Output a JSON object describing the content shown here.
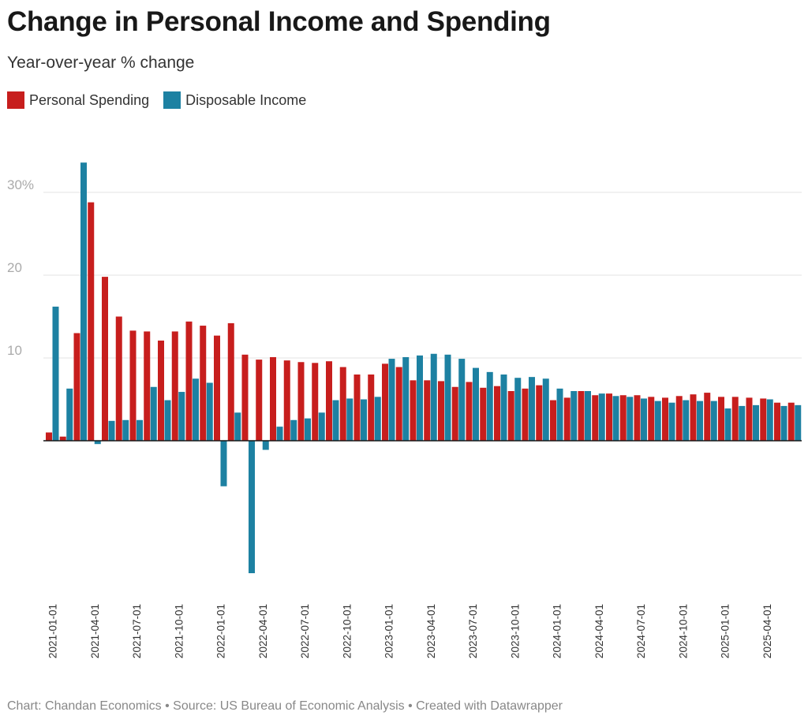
{
  "title": "Change in Personal Income and Spending",
  "subtitle": "Year-over-year % change",
  "footer": "Chart: Chandan Economics • Source: US Bureau of Economic Analysis • Created with Datawrapper",
  "colors": {
    "spending": "#c71e1d",
    "income": "#1d81a2",
    "grid": "#e3e3e3",
    "axis": "#181818"
  },
  "chart_data": {
    "type": "bar",
    "title": "Change in Personal Income and Spending",
    "subtitle": "Year-over-year % change",
    "xlabel": "",
    "ylabel": "",
    "ylim": [
      -17,
      34
    ],
    "grid": true,
    "legend": "top-left",
    "y_ticks": [
      {
        "value": 10,
        "label": "10"
      },
      {
        "value": 20,
        "label": "20"
      },
      {
        "value": 30,
        "label": "30%"
      }
    ],
    "x_tick_labels": [
      "2021-01-01",
      "2021-04-01",
      "2021-07-01",
      "2021-10-01",
      "2022-01-01",
      "2022-04-01",
      "2022-07-01",
      "2022-10-01",
      "2023-01-01",
      "2023-04-01",
      "2023-07-01",
      "2023-10-01",
      "2024-01-01",
      "2024-04-01",
      "2024-07-01",
      "2024-10-01",
      "2025-01-01",
      "2025-04-01"
    ],
    "categories": [
      "2021-01",
      "2021-02",
      "2021-03",
      "2021-04",
      "2021-05",
      "2021-06",
      "2021-07",
      "2021-08",
      "2021-09",
      "2021-10",
      "2021-11",
      "2021-12",
      "2022-01",
      "2022-02",
      "2022-03",
      "2022-04",
      "2022-05",
      "2022-06",
      "2022-07",
      "2022-08",
      "2022-09",
      "2022-10",
      "2022-11",
      "2022-12",
      "2023-01",
      "2023-02",
      "2023-03",
      "2023-04",
      "2023-05",
      "2023-06",
      "2023-07",
      "2023-08",
      "2023-09",
      "2023-10",
      "2023-11",
      "2023-12",
      "2024-01",
      "2024-02",
      "2024-03",
      "2024-04",
      "2024-05",
      "2024-06",
      "2024-07",
      "2024-08",
      "2024-09",
      "2024-10",
      "2024-11",
      "2024-12",
      "2025-01",
      "2025-02",
      "2025-03",
      "2025-04",
      "2025-05",
      "2025-06"
    ],
    "series": [
      {
        "name": "Personal Spending",
        "values": [
          1.0,
          0.5,
          13.0,
          28.8,
          19.8,
          15.0,
          13.3,
          13.2,
          12.1,
          13.2,
          14.4,
          13.9,
          12.7,
          14.2,
          10.4,
          9.8,
          10.1,
          9.7,
          9.5,
          9.4,
          9.6,
          8.9,
          8.0,
          8.0,
          9.3,
          8.9,
          7.3,
          7.3,
          7.2,
          6.5,
          7.1,
          6.4,
          6.6,
          6.0,
          6.3,
          6.7,
          4.9,
          5.2,
          6.0,
          5.5,
          5.7,
          5.5,
          5.5,
          5.3,
          5.2,
          5.4,
          5.6,
          5.8,
          5.3,
          5.3,
          5.2,
          5.1,
          4.6,
          4.6
        ]
      },
      {
        "name": "Disposable Income",
        "values": [
          16.2,
          6.3,
          33.6,
          -0.4,
          2.4,
          2.5,
          2.5,
          6.5,
          4.9,
          5.9,
          7.5,
          7.0,
          -5.5,
          3.4,
          -16.0,
          -1.1,
          1.7,
          2.5,
          2.7,
          3.4,
          4.9,
          5.1,
          5.0,
          5.3,
          9.9,
          10.1,
          10.3,
          10.5,
          10.4,
          9.9,
          8.8,
          8.3,
          8.0,
          7.6,
          7.7,
          7.5,
          6.3,
          6.0,
          6.0,
          5.7,
          5.4,
          5.3,
          5.1,
          4.8,
          4.6,
          4.9,
          4.8,
          4.8,
          3.9,
          4.2,
          4.3,
          5.0,
          4.2,
          4.3
        ]
      }
    ]
  }
}
